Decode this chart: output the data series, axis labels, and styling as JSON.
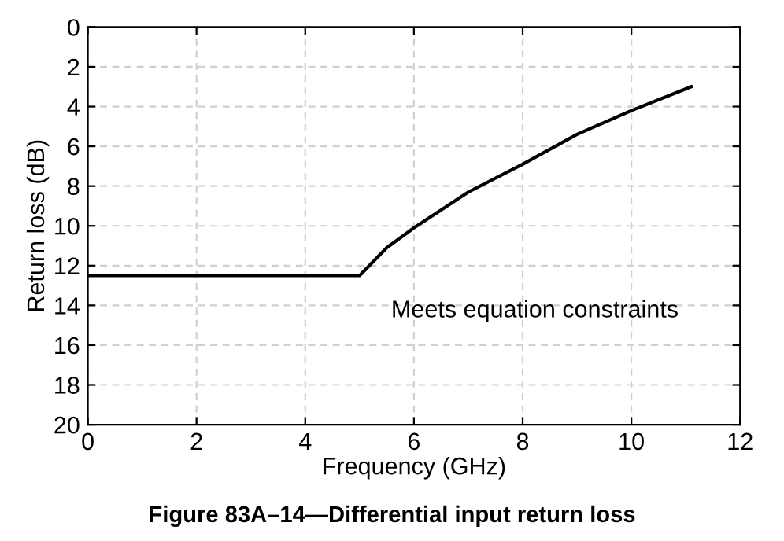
{
  "chart_data": {
    "type": "line",
    "title": "Figure 83A–14—Differential input return loss",
    "xlabel": "Frequency (GHz)",
    "ylabel": "Return loss (dB)",
    "x": [
      0,
      5,
      5.5,
      6,
      7,
      8,
      9,
      10,
      11.1
    ],
    "series": [
      {
        "color": "#000000",
        "values": [
          12.5,
          12.5,
          11.1,
          10.1,
          8.3,
          6.9,
          5.4,
          4.2,
          3
        ]
      }
    ],
    "annotations": [
      "Meets equation constraints"
    ],
    "xlim": [
      0,
      12
    ],
    "xticks": [
      0,
      2,
      4,
      6,
      8,
      10,
      12
    ],
    "ylim": [
      20,
      0
    ],
    "yticks": [
      0,
      2,
      4,
      6,
      8,
      10,
      12,
      14,
      16,
      18,
      20
    ],
    "grid": true,
    "marker": "none",
    "line_style": "solid",
    "legend": false
  }
}
